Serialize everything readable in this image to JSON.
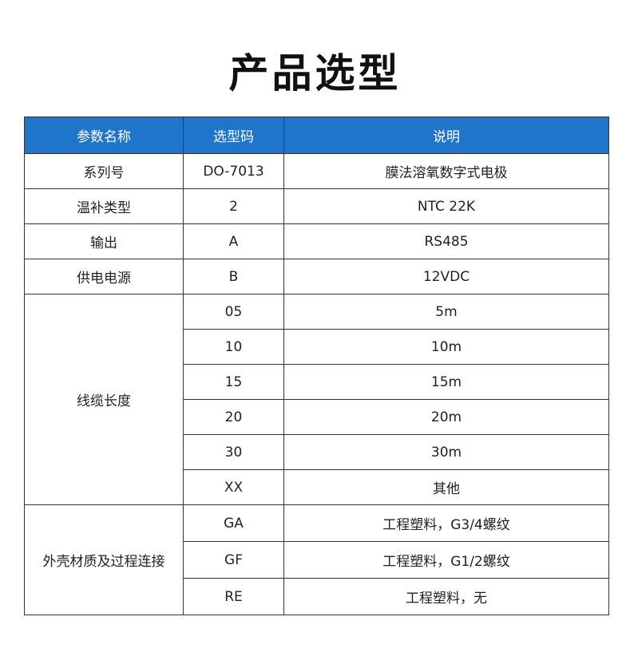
{
  "title": "产品选型",
  "headers": [
    "参数名称",
    "选型码",
    "说明"
  ],
  "rows": [
    {
      "param": "系列号",
      "code": "DO-7013",
      "desc": "膜法溶氧数字式电极"
    },
    {
      "param": "温补类型",
      "code": "2",
      "desc": "NTC 22K"
    },
    {
      "param": "输出",
      "code": "A",
      "desc": "RS485"
    },
    {
      "param": "供电电源",
      "code": "B",
      "desc": "12VDC"
    }
  ],
  "cable": {
    "param": "线缆长度",
    "options": [
      {
        "code": "05",
        "desc": "5m"
      },
      {
        "code": "10",
        "desc": "10m"
      },
      {
        "code": "15",
        "desc": "15m"
      },
      {
        "code": "20",
        "desc": "20m"
      },
      {
        "code": "30",
        "desc": "30m"
      },
      {
        "code": "XX",
        "desc": "其他"
      }
    ]
  },
  "housing": {
    "param": "外壳材质及过程连接",
    "options": [
      {
        "code": "GA",
        "desc": "工程塑料，G3/4螺纹"
      },
      {
        "code": "GF",
        "desc": "工程塑料，G1/2螺纹"
      },
      {
        "code": "RE",
        "desc": "工程塑料，无"
      }
    ]
  }
}
